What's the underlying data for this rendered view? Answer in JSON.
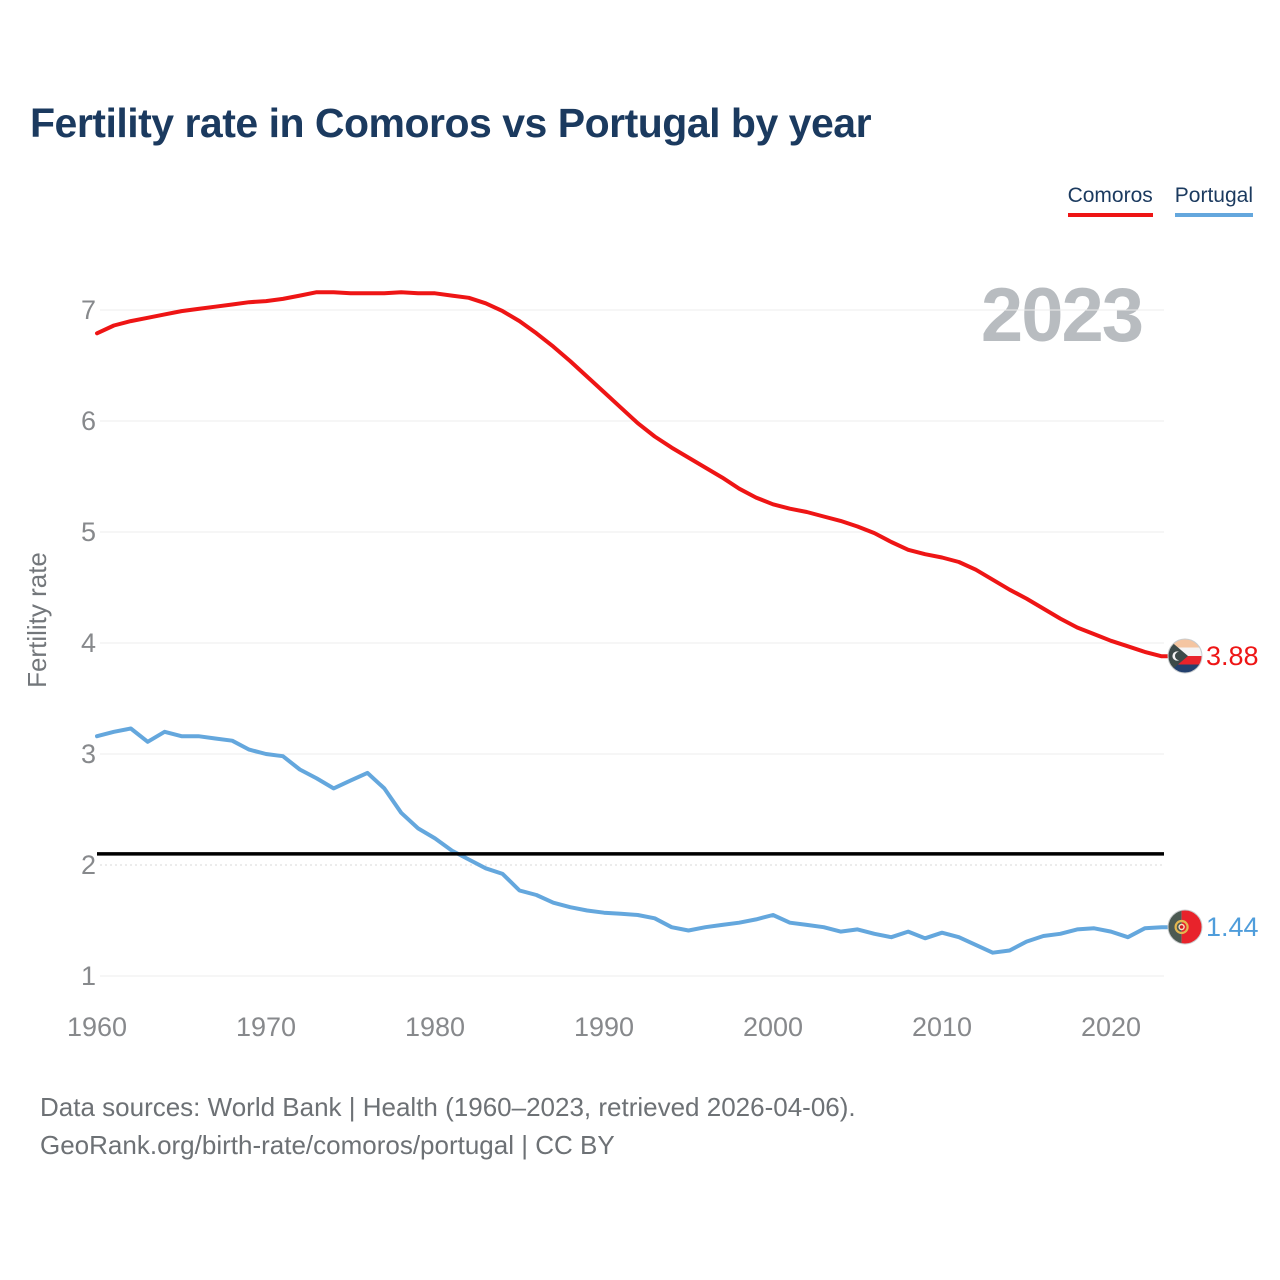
{
  "title": "Fertility rate in Comoros vs Portugal by year",
  "watermark": "2023",
  "legend": [
    {
      "label": "Comoros",
      "color": "#ee1515"
    },
    {
      "label": "Portugal",
      "color": "#64a7dd"
    }
  ],
  "chart_data": {
    "type": "line",
    "title": "Fertility rate in Comoros vs Portugal by year",
    "xlabel": "",
    "ylabel": "Fertility rate",
    "xlim": [
      1960,
      2023
    ],
    "ylim": [
      1,
      7
    ],
    "grid": "horizontal",
    "legend_position": "top-right",
    "x_ticks": [
      1960,
      1970,
      1980,
      1990,
      2000,
      2010,
      2020
    ],
    "y_ticks": [
      7,
      6,
      5,
      4,
      3,
      2,
      1
    ],
    "x": [
      1960,
      1961,
      1962,
      1963,
      1964,
      1965,
      1966,
      1967,
      1968,
      1969,
      1970,
      1971,
      1972,
      1973,
      1974,
      1975,
      1976,
      1977,
      1978,
      1979,
      1980,
      1981,
      1982,
      1983,
      1984,
      1985,
      1986,
      1987,
      1988,
      1989,
      1990,
      1991,
      1992,
      1993,
      1994,
      1995,
      1996,
      1997,
      1998,
      1999,
      2000,
      2001,
      2002,
      2003,
      2004,
      2005,
      2006,
      2007,
      2008,
      2009,
      2010,
      2011,
      2012,
      2013,
      2014,
      2015,
      2016,
      2017,
      2018,
      2019,
      2020,
      2021,
      2022,
      2023
    ],
    "series": [
      {
        "name": "Comoros",
        "color": "#ee1515",
        "end_label": "3.88",
        "values": [
          6.79,
          6.86,
          6.9,
          6.93,
          6.96,
          6.99,
          7.01,
          7.03,
          7.05,
          7.07,
          7.08,
          7.1,
          7.13,
          7.16,
          7.16,
          7.15,
          7.15,
          7.15,
          7.16,
          7.15,
          7.15,
          7.13,
          7.11,
          7.06,
          6.99,
          6.9,
          6.79,
          6.67,
          6.54,
          6.4,
          6.26,
          6.12,
          5.98,
          5.86,
          5.76,
          5.67,
          5.58,
          5.49,
          5.39,
          5.31,
          5.25,
          5.21,
          5.18,
          5.14,
          5.1,
          5.05,
          4.99,
          4.91,
          4.84,
          4.8,
          4.77,
          4.73,
          4.66,
          4.57,
          4.48,
          4.4,
          4.31,
          4.22,
          4.14,
          4.08,
          4.02,
          3.97,
          3.92,
          3.88
        ]
      },
      {
        "name": "Portugal",
        "color": "#64a7dd",
        "end_label": "1.44",
        "values": [
          3.16,
          3.2,
          3.23,
          3.11,
          3.2,
          3.16,
          3.16,
          3.14,
          3.12,
          3.04,
          3.0,
          2.98,
          2.86,
          2.78,
          2.69,
          2.76,
          2.83,
          2.69,
          2.47,
          2.33,
          2.24,
          2.13,
          2.05,
          1.97,
          1.92,
          1.77,
          1.73,
          1.66,
          1.62,
          1.59,
          1.57,
          1.56,
          1.55,
          1.52,
          1.44,
          1.41,
          1.44,
          1.46,
          1.48,
          1.51,
          1.55,
          1.48,
          1.46,
          1.44,
          1.4,
          1.42,
          1.38,
          1.35,
          1.4,
          1.34,
          1.39,
          1.35,
          1.28,
          1.21,
          1.23,
          1.31,
          1.36,
          1.38,
          1.42,
          1.43,
          1.4,
          1.35,
          1.43,
          1.44
        ]
      }
    ],
    "reference_line": {
      "value": 2.1,
      "color": "#000000"
    }
  },
  "footer": {
    "line1": "Data sources: World Bank | Health (1960–2023, retrieved 2026-04-06).",
    "line2": "GeoRank.org/birth-rate/comoros/portugal | CC BY"
  }
}
